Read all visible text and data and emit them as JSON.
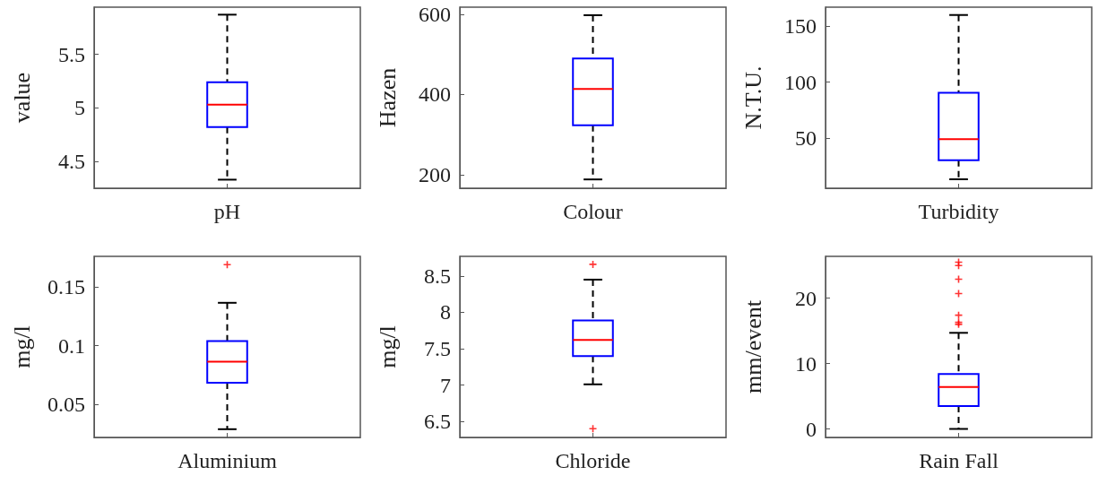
{
  "chart_data": [
    {
      "type": "box",
      "categories": [
        "pH"
      ],
      "ylabel": "value",
      "ylim": [
        4.25,
        5.94
      ],
      "yticks": [
        4.5,
        5,
        5.5
      ],
      "color": "#0000ff",
      "boxes": [
        {
          "low": 4.33,
          "q1": 4.82,
          "median": 5.03,
          "q3": 5.24,
          "high": 5.87
        }
      ]
    },
    {
      "type": "box",
      "categories": [
        "Colour"
      ],
      "ylabel": "Hazen",
      "ylim": [
        166,
        618
      ],
      "yticks": [
        200,
        400,
        600
      ],
      "color": "#0000ff",
      "boxes": [
        {
          "low": 188,
          "q1": 323,
          "median": 414,
          "q3": 490,
          "high": 598
        }
      ]
    },
    {
      "type": "box",
      "categories": [
        "Turbidity"
      ],
      "ylabel": "N.T.U.",
      "ylim": [
        5,
        167
      ],
      "yticks": [
        50,
        100,
        150
      ],
      "color": "#0000ff",
      "boxes": [
        {
          "low": 13,
          "q1": 30,
          "median": 49,
          "q3": 90.5,
          "high": 160
        }
      ]
    },
    {
      "type": "box",
      "categories": [
        "Aluminium"
      ],
      "ylabel": "mg/l",
      "ylim": [
        0.022,
        0.176
      ],
      "yticks": [
        0.05,
        0.1,
        0.15
      ],
      "color": "#0000ff",
      "marker": "cross",
      "boxes": [
        {
          "low": 0.029,
          "q1": 0.0686,
          "median": 0.0865,
          "q3": 0.104,
          "high": 0.1365,
          "outliers": [
            0.169
          ]
        }
      ]
    },
    {
      "type": "box",
      "categories": [
        "Chloride"
      ],
      "ylabel": "mg/l",
      "ylim": [
        6.28,
        8.77
      ],
      "yticks": [
        6.5,
        7,
        7.5,
        8,
        8.5
      ],
      "color": "#0000ff",
      "marker": "cross",
      "boxes": [
        {
          "low": 7.01,
          "q1": 7.4,
          "median": 7.62,
          "q3": 7.89,
          "high": 8.45,
          "outliers": [
            8.66,
            6.4
          ]
        }
      ]
    },
    {
      "type": "box",
      "categories": [
        "Rain Fall"
      ],
      "ylabel": "mm/event",
      "ylim": [
        -1.3,
        26.4
      ],
      "yticks": [
        0,
        10,
        20
      ],
      "color": "#0000ff",
      "marker": "cross",
      "boxes": [
        {
          "low": 0,
          "q1": 3.5,
          "median": 6.4,
          "q3": 8.4,
          "high": 14.7,
          "outliers": [
            25.5,
            25.0,
            22.9,
            20.7,
            17.4,
            16.3,
            16.0
          ]
        }
      ]
    }
  ]
}
